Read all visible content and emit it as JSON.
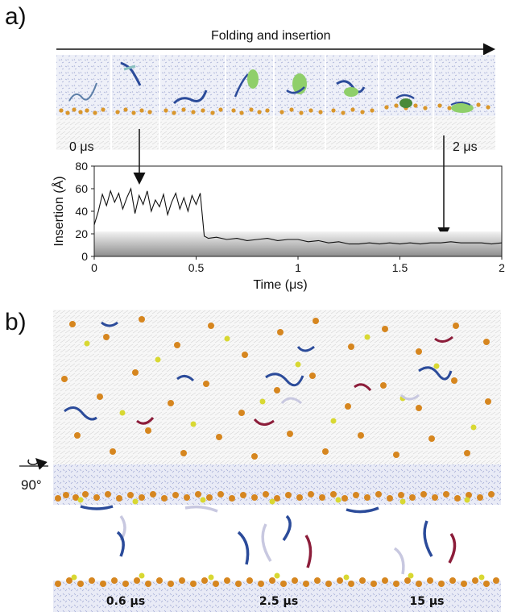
{
  "panels": {
    "a": {
      "label": "a)",
      "arrow_title": "Folding and insertion",
      "time_start": "0 μs",
      "time_end": "2 μs"
    },
    "b": {
      "label": "b)",
      "rotation_label": "90°",
      "snapshots": [
        "0.6 μs",
        "2.5 μs",
        "15 μs"
      ]
    }
  },
  "chart_data": {
    "type": "line",
    "xlabel": "Time (μs)",
    "ylabel": "Insertion (Å)",
    "xlim": [
      0,
      2
    ],
    "ylim": [
      0,
      80
    ],
    "xticks": [
      "0",
      "0.5",
      "1",
      "1.5",
      "2"
    ],
    "yticks": [
      "0",
      "20",
      "40",
      "60",
      "80"
    ],
    "shaded_band_ylim": [
      0,
      22
    ],
    "series": [
      {
        "x": [
          0.0,
          0.02,
          0.04,
          0.06,
          0.08,
          0.1,
          0.12,
          0.14,
          0.16,
          0.18,
          0.2,
          0.22,
          0.24,
          0.26,
          0.28,
          0.3,
          0.32,
          0.34,
          0.36,
          0.38,
          0.4,
          0.42,
          0.44,
          0.46,
          0.48,
          0.5,
          0.52,
          0.54,
          0.56,
          0.6,
          0.65,
          0.7,
          0.75,
          0.8,
          0.85,
          0.9,
          0.95,
          1.0,
          1.05,
          1.1,
          1.15,
          1.2,
          1.25,
          1.3,
          1.35,
          1.4,
          1.45,
          1.5,
          1.55,
          1.6,
          1.65,
          1.7,
          1.75,
          1.8,
          1.85,
          1.9,
          1.95,
          2.0
        ],
        "y": [
          28,
          40,
          55,
          45,
          58,
          48,
          56,
          42,
          52,
          60,
          38,
          54,
          46,
          58,
          40,
          50,
          44,
          55,
          37,
          48,
          56,
          42,
          52,
          40,
          54,
          46,
          56,
          18,
          16,
          17,
          15,
          16,
          14,
          15,
          16,
          14,
          15,
          15,
          13,
          14,
          12,
          13,
          11,
          11,
          12,
          11,
          12,
          11,
          12,
          11,
          12,
          12,
          13,
          12,
          12,
          12,
          11,
          12
        ]
      }
    ]
  }
}
